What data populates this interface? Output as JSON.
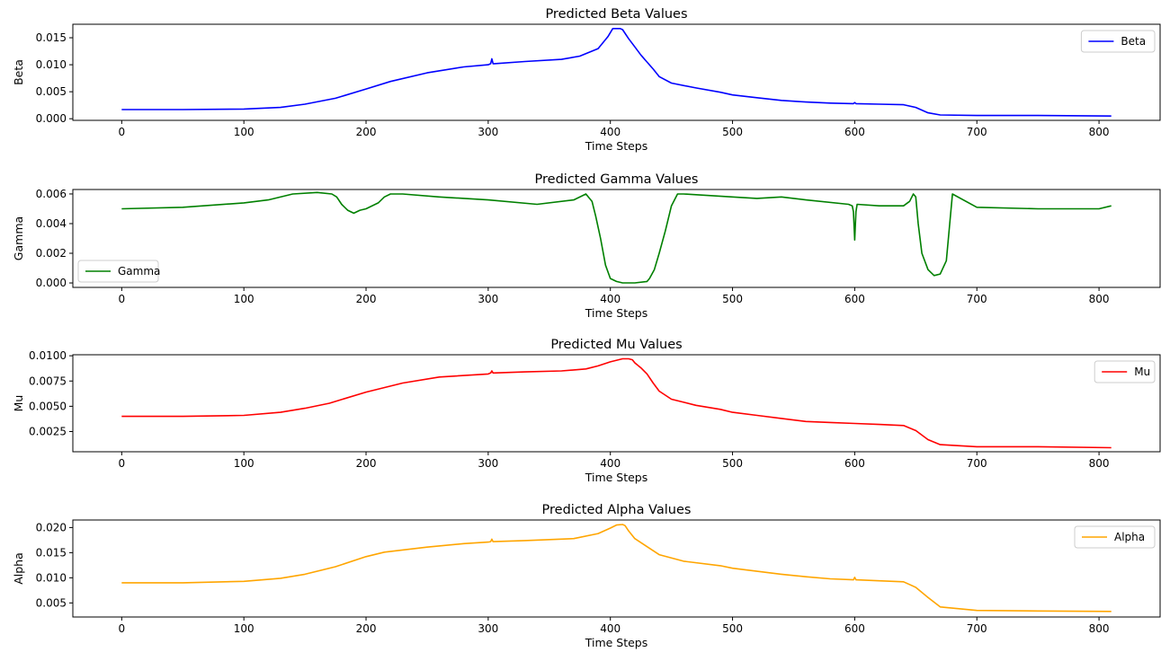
{
  "chart_data": [
    {
      "type": "line",
      "title": "Predicted Beta Values",
      "xlabel": "Time Steps",
      "ylabel": "Beta",
      "xlim": [
        -40,
        850
      ],
      "ylim": [
        -0.0003,
        0.0175
      ],
      "xticks": [
        0,
        100,
        200,
        300,
        400,
        500,
        600,
        700,
        800
      ],
      "yticks": [
        0.0,
        0.005,
        0.01,
        0.015
      ],
      "ytick_labels": [
        "0.000",
        "0.005",
        "0.010",
        "0.015"
      ],
      "xtick_labels": [
        "0",
        "100",
        "200",
        "300",
        "400",
        "500",
        "600",
        "700",
        "800"
      ],
      "legend": "top-right",
      "series": [
        {
          "name": "Beta",
          "color": "#0000ff",
          "x": [
            0,
            50,
            100,
            130,
            150,
            175,
            200,
            220,
            250,
            280,
            300,
            302,
            303,
            304,
            305,
            330,
            360,
            375,
            390,
            398,
            402,
            408,
            410,
            415,
            420,
            425,
            430,
            435,
            440,
            450,
            470,
            490,
            500,
            520,
            540,
            560,
            580,
            599,
            600,
            601,
            620,
            640,
            650,
            660,
            670,
            700,
            750,
            810
          ],
          "values": [
            0.0017,
            0.0017,
            0.0018,
            0.0021,
            0.0027,
            0.0038,
            0.0055,
            0.0069,
            0.0085,
            0.0096,
            0.01,
            0.0102,
            0.0111,
            0.0102,
            0.0102,
            0.0106,
            0.011,
            0.0116,
            0.013,
            0.0152,
            0.0167,
            0.0167,
            0.0165,
            0.0148,
            0.0133,
            0.0118,
            0.0105,
            0.0092,
            0.0078,
            0.0066,
            0.0057,
            0.0049,
            0.0044,
            0.0039,
            0.0034,
            0.0031,
            0.0029,
            0.0028,
            0.003,
            0.0028,
            0.0027,
            0.0026,
            0.0021,
            0.0011,
            0.0007,
            0.0006,
            0.0006,
            0.0005
          ]
        }
      ]
    },
    {
      "type": "line",
      "title": "Predicted Gamma Values",
      "xlabel": "Time Steps",
      "ylabel": "Gamma",
      "xlim": [
        -40,
        850
      ],
      "ylim": [
        -0.0003,
        0.0063
      ],
      "xticks": [
        0,
        100,
        200,
        300,
        400,
        500,
        600,
        700,
        800
      ],
      "yticks": [
        0.0,
        0.002,
        0.004,
        0.006
      ],
      "ytick_labels": [
        "0.000",
        "0.002",
        "0.004",
        "0.006"
      ],
      "xtick_labels": [
        "0",
        "100",
        "200",
        "300",
        "400",
        "500",
        "600",
        "700",
        "800"
      ],
      "legend": "bottom-left",
      "series": [
        {
          "name": "Gamma",
          "color": "#008000",
          "x": [
            0,
            50,
            100,
            120,
            140,
            160,
            172,
            176,
            180,
            185,
            190,
            195,
            200,
            210,
            215,
            220,
            230,
            260,
            300,
            340,
            370,
            380,
            385,
            388,
            392,
            396,
            400,
            405,
            410,
            420,
            430,
            432,
            436,
            440,
            445,
            450,
            455,
            460,
            500,
            520,
            540,
            560,
            595,
            598,
            599,
            600,
            601,
            602,
            620,
            640,
            645,
            648,
            650,
            652,
            655,
            660,
            665,
            670,
            675,
            680,
            700,
            750,
            800,
            810
          ],
          "values": [
            0.005,
            0.0051,
            0.0054,
            0.0056,
            0.006,
            0.0061,
            0.006,
            0.0058,
            0.0053,
            0.0049,
            0.0047,
            0.0049,
            0.005,
            0.0054,
            0.0058,
            0.006,
            0.006,
            0.0058,
            0.0056,
            0.0053,
            0.0056,
            0.006,
            0.0055,
            0.0045,
            0.003,
            0.0012,
            0.0003,
            0.0001,
            0.0,
            0.0,
            0.0001,
            0.0003,
            0.0009,
            0.002,
            0.0035,
            0.0052,
            0.006,
            0.006,
            0.0058,
            0.0057,
            0.0058,
            0.0056,
            0.0053,
            0.0052,
            0.0048,
            0.0029,
            0.0048,
            0.0053,
            0.0052,
            0.0052,
            0.0055,
            0.006,
            0.0058,
            0.004,
            0.002,
            0.0009,
            0.0005,
            0.0006,
            0.0015,
            0.006,
            0.0051,
            0.005,
            0.005,
            0.0052
          ]
        }
      ]
    },
    {
      "type": "line",
      "title": "Predicted Mu Values",
      "xlabel": "Time Steps",
      "ylabel": "Mu",
      "xlim": [
        -40,
        850
      ],
      "ylim": [
        0.0005,
        0.0101
      ],
      "xticks": [
        0,
        100,
        200,
        300,
        400,
        500,
        600,
        700,
        800
      ],
      "yticks": [
        0.0025,
        0.005,
        0.0075,
        0.01
      ],
      "ytick_labels": [
        "0.0025",
        "0.0050",
        "0.0075",
        "0.0100"
      ],
      "xtick_labels": [
        "0",
        "100",
        "200",
        "300",
        "400",
        "500",
        "600",
        "700",
        "800"
      ],
      "legend": "top-right",
      "series": [
        {
          "name": "Mu",
          "color": "#ff0000",
          "x": [
            0,
            50,
            100,
            130,
            150,
            170,
            200,
            230,
            260,
            300,
            302,
            303,
            304,
            330,
            360,
            380,
            390,
            400,
            410,
            415,
            418,
            420,
            425,
            430,
            435,
            440,
            450,
            470,
            490,
            500,
            520,
            540,
            560,
            580,
            600,
            620,
            640,
            650,
            660,
            670,
            700,
            750,
            810
          ],
          "values": [
            0.004,
            0.004,
            0.0041,
            0.0044,
            0.0048,
            0.0053,
            0.0064,
            0.0073,
            0.0079,
            0.0082,
            0.0083,
            0.0085,
            0.0083,
            0.0084,
            0.0085,
            0.0087,
            0.009,
            0.0094,
            0.0097,
            0.0097,
            0.0096,
            0.0093,
            0.0088,
            0.0082,
            0.0073,
            0.0065,
            0.0057,
            0.0051,
            0.0047,
            0.0044,
            0.0041,
            0.0038,
            0.0035,
            0.0034,
            0.0033,
            0.0032,
            0.0031,
            0.0026,
            0.0017,
            0.0012,
            0.001,
            0.001,
            0.0009
          ]
        }
      ]
    },
    {
      "type": "line",
      "title": "Predicted Alpha Values",
      "xlabel": "Time Steps",
      "ylabel": "Alpha",
      "xlim": [
        -40,
        850
      ],
      "ylim": [
        0.0022,
        0.0215
      ],
      "xticks": [
        0,
        100,
        200,
        300,
        400,
        500,
        600,
        700,
        800
      ],
      "yticks": [
        0.005,
        0.01,
        0.015,
        0.02
      ],
      "ytick_labels": [
        "0.005",
        "0.010",
        "0.015",
        "0.020"
      ],
      "xtick_labels": [
        "0",
        "100",
        "200",
        "300",
        "400",
        "500",
        "600",
        "700",
        "800"
      ],
      "legend": "top-right",
      "series": [
        {
          "name": "Alpha",
          "color": "#ffa500",
          "x": [
            0,
            50,
            100,
            130,
            150,
            175,
            200,
            215,
            250,
            280,
            300,
            302,
            303,
            304,
            330,
            370,
            390,
            400,
            405,
            410,
            412,
            415,
            420,
            430,
            440,
            460,
            490,
            500,
            520,
            540,
            560,
            580,
            599,
            600,
            601,
            620,
            640,
            650,
            660,
            670,
            700,
            750,
            810
          ],
          "values": [
            0.009,
            0.009,
            0.0093,
            0.0099,
            0.0107,
            0.0122,
            0.0142,
            0.0151,
            0.0161,
            0.0168,
            0.0171,
            0.0172,
            0.0177,
            0.0172,
            0.0174,
            0.0178,
            0.0188,
            0.0199,
            0.0205,
            0.0206,
            0.0204,
            0.0193,
            0.0178,
            0.0162,
            0.0146,
            0.0133,
            0.0124,
            0.0119,
            0.0113,
            0.0107,
            0.0102,
            0.0098,
            0.0096,
            0.0101,
            0.0096,
            0.0094,
            0.0092,
            0.0081,
            0.0061,
            0.0042,
            0.0035,
            0.0034,
            0.0033
          ]
        }
      ]
    }
  ]
}
